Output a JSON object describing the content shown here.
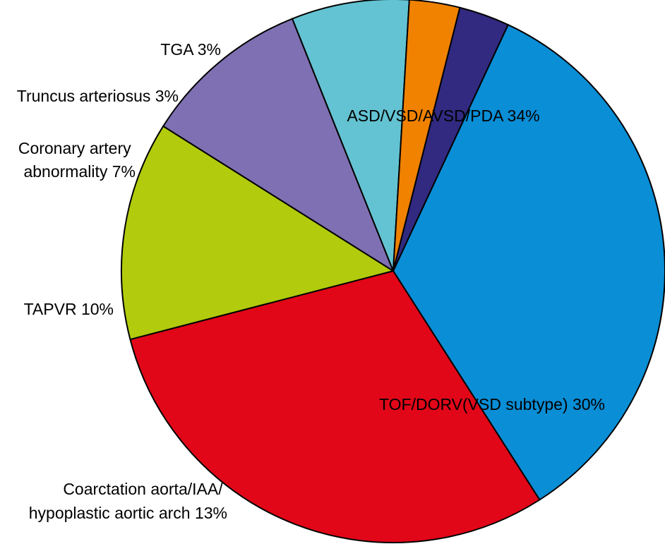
{
  "chart_data": {
    "type": "pie",
    "title": "",
    "start_angle_deg": -65,
    "direction": "clockwise",
    "slices": [
      {
        "name": "ASD/VSD/AVSD/PDA",
        "value": 34,
        "label_lines": [
          "ASD/VSD/AVSD/PDA 34%"
        ],
        "color": "#0a8ed6"
      },
      {
        "name": "TOF/DORV(VSD subtype)",
        "value": 30,
        "label_lines": [
          "TOF/DORV(VSD subtype) 30%"
        ],
        "color": "#e10718"
      },
      {
        "name": "Coarctation aorta/IAA/hypoplastic aortic arch",
        "value": 13,
        "label_lines": [
          "Coarctation aorta/IAA/",
          "hypoplastic aortic arch 13%"
        ],
        "color": "#b2cb0c"
      },
      {
        "name": "TAPVR",
        "value": 10,
        "label_lines": [
          "TAPVR 10%"
        ],
        "color": "#7e70b2"
      },
      {
        "name": "Coronary artery abnormality",
        "value": 7,
        "label_lines": [
          "Coronary artery",
          "abnormality 7%"
        ],
        "color": "#63c3d2"
      },
      {
        "name": "Truncus arteriosus",
        "value": 3,
        "label_lines": [
          "Truncus arteriosus 3%"
        ],
        "color": "#f08200"
      },
      {
        "name": "TGA",
        "value": 3,
        "label_lines": [
          "TGA 3%"
        ],
        "color": "#312a80"
      }
    ]
  }
}
